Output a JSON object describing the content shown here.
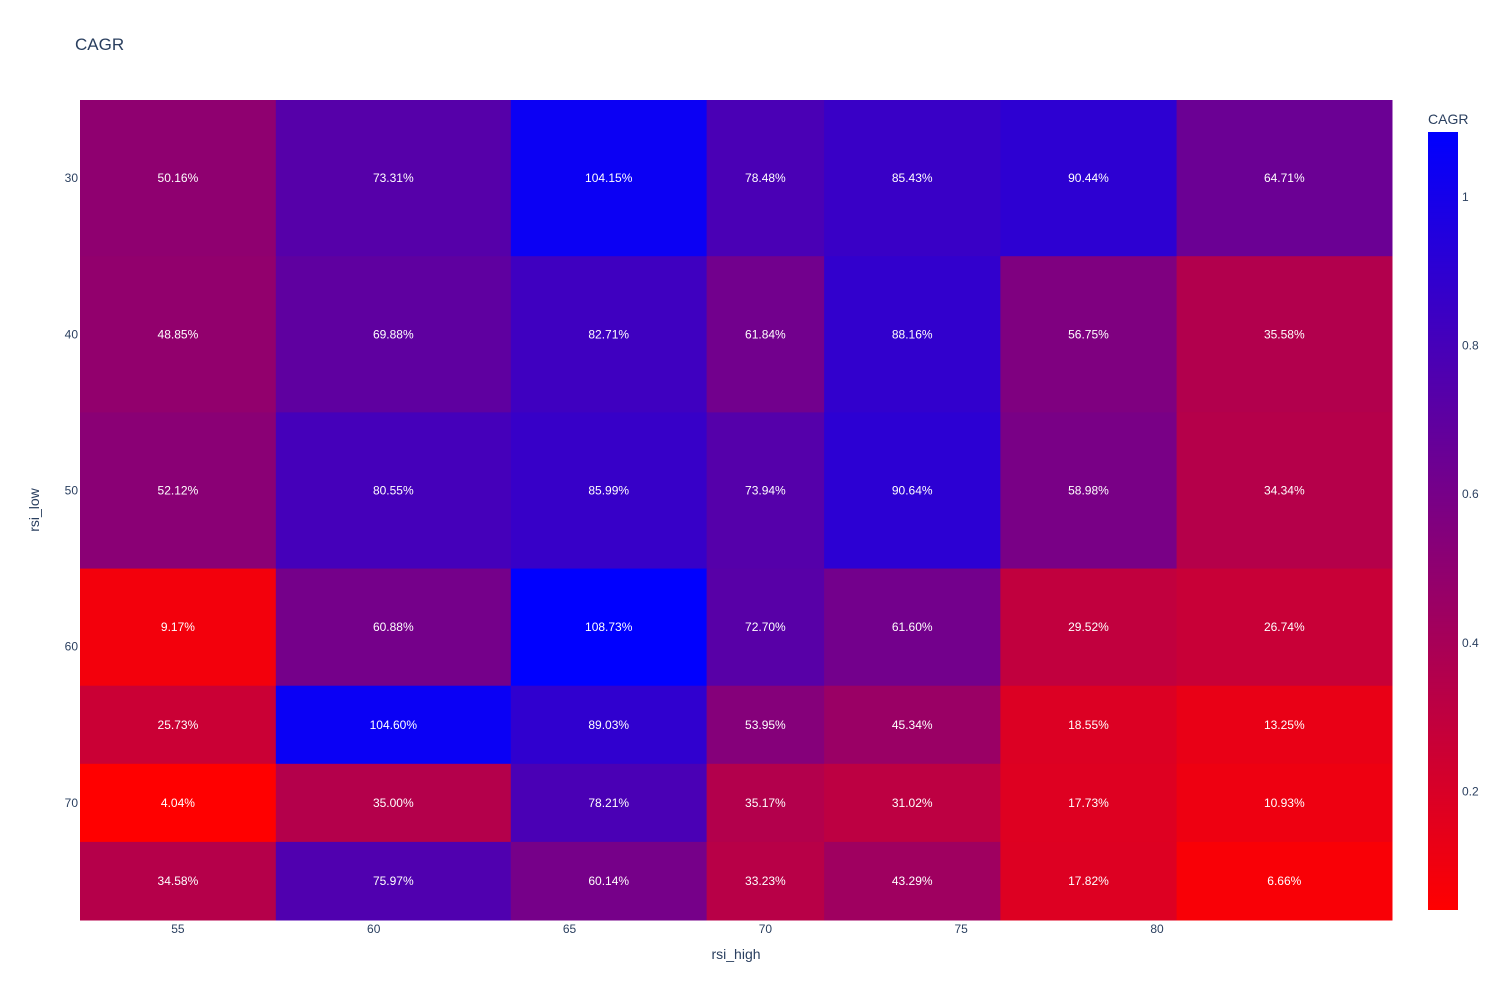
{
  "chart_data": {
    "type": "heatmap",
    "title": "CAGR",
    "xlabel": "rsi_high",
    "ylabel": "rsi_low",
    "x_tick_labels": [
      "55",
      "60",
      "65",
      "70",
      "75",
      "80"
    ],
    "y_tick_labels": [
      "30",
      "40",
      "50",
      "60",
      "70"
    ],
    "x_bins": [
      52.5,
      57.5,
      63.5,
      68.5,
      71.5,
      76.0,
      80.5,
      86.0
    ],
    "y_bins": [
      25,
      35,
      45,
      55,
      62.5,
      67.5,
      72.5,
      77.5
    ],
    "rows": [
      [
        0.5016,
        0.7331,
        1.0415,
        0.7848,
        0.8543,
        0.9044,
        0.6471
      ],
      [
        0.4885,
        0.6988,
        0.8271,
        0.6184,
        0.8816,
        0.5675,
        0.3558
      ],
      [
        0.5212,
        0.8055,
        0.8599,
        0.7394,
        0.9064,
        0.5898,
        0.3434
      ],
      [
        0.0917,
        0.6088,
        1.0873,
        0.727,
        0.616,
        0.2952,
        0.2674
      ],
      [
        0.2573,
        1.046,
        0.8903,
        0.5395,
        0.4534,
        0.1855,
        0.1325
      ],
      [
        0.0404,
        0.35,
        0.7821,
        0.3517,
        0.3102,
        0.1773,
        0.1093
      ],
      [
        0.3458,
        0.7597,
        0.6014,
        0.3323,
        0.4329,
        0.1782,
        0.0666
      ]
    ],
    "text": [
      [
        "50.16%",
        "73.31%",
        "104.15%",
        "78.48%",
        "85.43%",
        "90.44%",
        "64.71%"
      ],
      [
        "48.85%",
        "69.88%",
        "82.71%",
        "61.84%",
        "88.16%",
        "56.75%",
        "35.58%"
      ],
      [
        "52.12%",
        "80.55%",
        "85.99%",
        "73.94%",
        "90.64%",
        "58.98%",
        "34.34%"
      ],
      [
        "9.17%",
        "60.88%",
        "108.73%",
        "72.70%",
        "61.60%",
        "29.52%",
        "26.74%"
      ],
      [
        "25.73%",
        "104.60%",
        "89.03%",
        "53.95%",
        "45.34%",
        "18.55%",
        "13.25%"
      ],
      [
        "4.04%",
        "35.00%",
        "78.21%",
        "35.17%",
        "31.02%",
        "17.73%",
        "10.93%"
      ],
      [
        "34.58%",
        "75.97%",
        "60.14%",
        "33.23%",
        "43.29%",
        "17.82%",
        "6.66%"
      ]
    ],
    "colorscale": [
      "#ff0000",
      "#0000ff"
    ],
    "zmin": 0.0404,
    "zmax": 1.0873,
    "colorbar": {
      "title": "CAGR",
      "ticks": [
        0.2,
        0.4,
        0.6,
        0.8,
        1
      ],
      "tick_labels": [
        "0.2",
        "0.4",
        "0.6",
        "0.8",
        "1"
      ]
    },
    "legend": "colorbar-right"
  }
}
